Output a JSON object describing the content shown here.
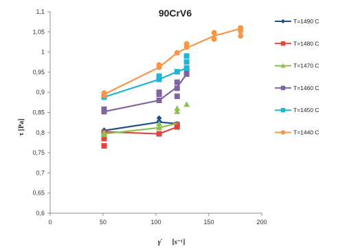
{
  "chart_data": {
    "type": "line",
    "title": "90CrV6",
    "ylabel": "τ [Pa]",
    "xlabel_symbol": "γ̇",
    "xlabel_unit": "[s⁻¹]",
    "xlim": [
      0,
      200
    ],
    "ylim": [
      0.6,
      1.1
    ],
    "x_ticks": [
      "0",
      "50",
      "100",
      "150",
      "200"
    ],
    "y_ticks": [
      "0,6",
      "0,65",
      "0,7",
      "0,75",
      "0,8",
      "0,85",
      "0,9",
      "0,95",
      "1",
      "1,05",
      "1,1"
    ],
    "grid": false,
    "legend_position": "right",
    "series": [
      {
        "name": "T=1490 C",
        "color": "#1f4e8c",
        "marker": "diamond",
        "line": [
          [
            51,
            0.805
          ],
          [
            103,
            0.826
          ],
          [
            120,
            0.822
          ]
        ],
        "points": [
          [
            51,
            0.806
          ],
          [
            51,
            0.8
          ],
          [
            51,
            0.792
          ],
          [
            103,
            0.836
          ],
          [
            103,
            0.828
          ],
          [
            120,
            0.822
          ]
        ]
      },
      {
        "name": "T=1480 C",
        "color": "#e0453f",
        "marker": "square",
        "line": [
          [
            51,
            0.802
          ],
          [
            103,
            0.797
          ],
          [
            120,
            0.814
          ]
        ],
        "points": [
          [
            51,
            0.8
          ],
          [
            51,
            0.785
          ],
          [
            51,
            0.767
          ],
          [
            103,
            0.797
          ],
          [
            120,
            0.814
          ],
          [
            120,
            0.82
          ]
        ]
      },
      {
        "name": "T=1470 C",
        "color": "#8cc152",
        "marker": "triangle",
        "line": [
          [
            51,
            0.797
          ],
          [
            103,
            0.812
          ],
          [
            120,
            0.823
          ]
        ],
        "points": [
          [
            51,
            0.795
          ],
          [
            51,
            0.8
          ],
          [
            103,
            0.812
          ],
          [
            103,
            0.822
          ],
          [
            120,
            0.86
          ],
          [
            120,
            0.852
          ],
          [
            129,
            0.87
          ]
        ]
      },
      {
        "name": "T=1460 C",
        "color": "#8064a2",
        "marker": "square",
        "line": [
          [
            51,
            0.852
          ],
          [
            103,
            0.88
          ],
          [
            120,
            0.913
          ],
          [
            129,
            0.945
          ]
        ],
        "points": [
          [
            51,
            0.852
          ],
          [
            51,
            0.858
          ],
          [
            103,
            0.88
          ],
          [
            103,
            0.895
          ],
          [
            103,
            0.9
          ],
          [
            120,
            0.89
          ],
          [
            120,
            0.91
          ],
          [
            120,
            0.925
          ],
          [
            129,
            0.945
          ],
          [
            129,
            0.955
          ]
        ]
      },
      {
        "name": "T=1450 C",
        "color": "#1fb5d4",
        "marker": "square",
        "line": [
          [
            51,
            0.888
          ],
          [
            103,
            0.932
          ],
          [
            120,
            0.951
          ],
          [
            129,
            0.96
          ]
        ],
        "points": [
          [
            51,
            0.888
          ],
          [
            103,
            0.932
          ],
          [
            103,
            0.94
          ],
          [
            120,
            0.951
          ],
          [
            129,
            0.96
          ],
          [
            129,
            0.975
          ],
          [
            129,
            0.99
          ]
        ]
      },
      {
        "name": "T=1440 C",
        "color": "#f79646",
        "marker": "circle",
        "line": [
          [
            51,
            0.895
          ],
          [
            103,
            0.962
          ],
          [
            120,
            0.998
          ],
          [
            129,
            1.01
          ],
          [
            155,
            1.04
          ],
          [
            180,
            1.058
          ]
        ],
        "points": [
          [
            51,
            0.892
          ],
          [
            51,
            0.898
          ],
          [
            103,
            0.962
          ],
          [
            103,
            0.968
          ],
          [
            120,
            0.998
          ],
          [
            129,
            1.012
          ],
          [
            129,
            1.02
          ],
          [
            155,
            1.032
          ],
          [
            155,
            1.048
          ],
          [
            180,
            1.04
          ],
          [
            180,
            1.052
          ],
          [
            180,
            1.06
          ]
        ]
      }
    ]
  }
}
